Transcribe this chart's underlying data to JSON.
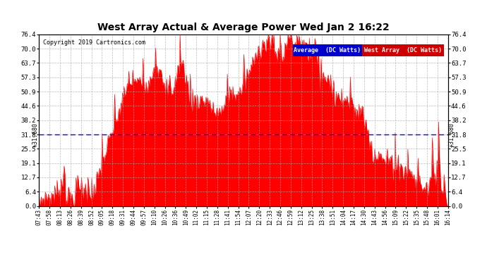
{
  "title": "West Array Actual & Average Power Wed Jan 2 16:22",
  "copyright": "Copyright 2019 Cartronics.com",
  "legend_average": "Average  (DC Watts)",
  "legend_west": "West Array  (DC Watts)",
  "average_value": 31.68,
  "average_label": "+31.680",
  "y_ticks": [
    0.0,
    6.4,
    12.7,
    19.1,
    25.5,
    31.8,
    38.2,
    44.6,
    50.9,
    57.3,
    63.7,
    70.0,
    76.4
  ],
  "x_tick_labels": [
    "07:43",
    "07:58",
    "08:13",
    "08:26",
    "08:39",
    "08:52",
    "09:05",
    "09:18",
    "09:31",
    "09:44",
    "09:57",
    "10:10",
    "10:26",
    "10:36",
    "10:49",
    "11:02",
    "11:15",
    "11:28",
    "11:41",
    "11:54",
    "12:07",
    "12:20",
    "12:33",
    "12:46",
    "12:59",
    "13:12",
    "13:25",
    "13:38",
    "13:51",
    "14:04",
    "14:17",
    "14:30",
    "14:43",
    "14:56",
    "15:09",
    "15:22",
    "15:35",
    "15:48",
    "16:01",
    "16:14"
  ],
  "bar_color": "#FF0000",
  "average_line_color": "#0000FF",
  "background_color": "#FFFFFF",
  "grid_color": "#AAAAAA",
  "title_color": "#000000",
  "legend_avg_bg": "#0000CC",
  "legend_west_bg": "#CC0000",
  "legend_text_color": "#FFFFFF",
  "ymin": 0.0,
  "ymax": 76.4,
  "figwidth": 6.9,
  "figheight": 3.75,
  "dpi": 100
}
